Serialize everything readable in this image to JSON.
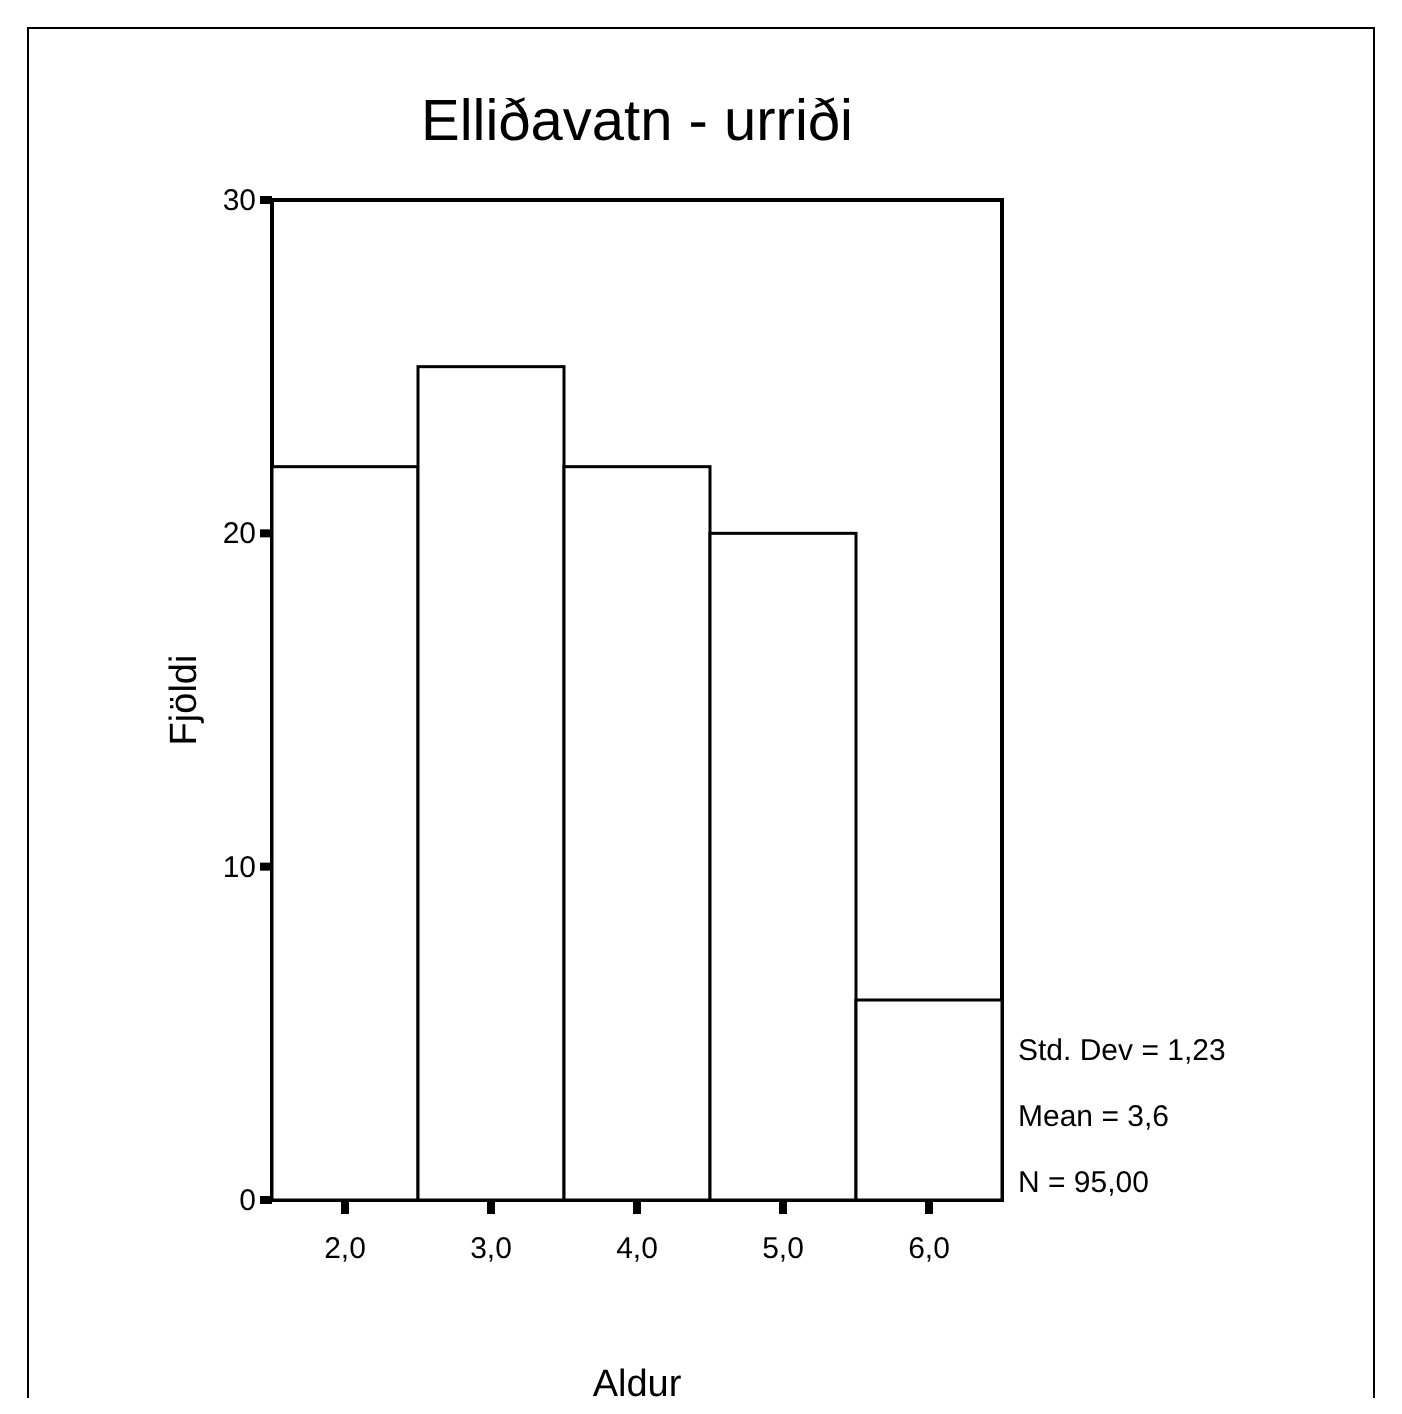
{
  "chart_data": {
    "type": "histogram",
    "title": "Elliðavatn - urriði",
    "xlabel": "Aldur",
    "ylabel": "Fjöldi",
    "bins": [
      1.5,
      2.5,
      3.5,
      4.5,
      5.5,
      6.5
    ],
    "values": [
      22,
      25,
      22,
      20,
      6
    ],
    "color": "#ffffff",
    "xlim": [
      1.5,
      6.5
    ],
    "xticks": [
      {
        "value": 2,
        "label": "2,0"
      },
      {
        "value": 3,
        "label": "3,0"
      },
      {
        "value": 4,
        "label": "4,0"
      },
      {
        "value": 5,
        "label": "5,0"
      },
      {
        "value": 6,
        "label": "6,0"
      }
    ],
    "ylim": [
      0,
      30
    ],
    "yticks": [
      0,
      10,
      20,
      30
    ],
    "annotations": [
      "Std. Dev = 1,23",
      "Mean = 3,6",
      "N = 95,00"
    ]
  }
}
